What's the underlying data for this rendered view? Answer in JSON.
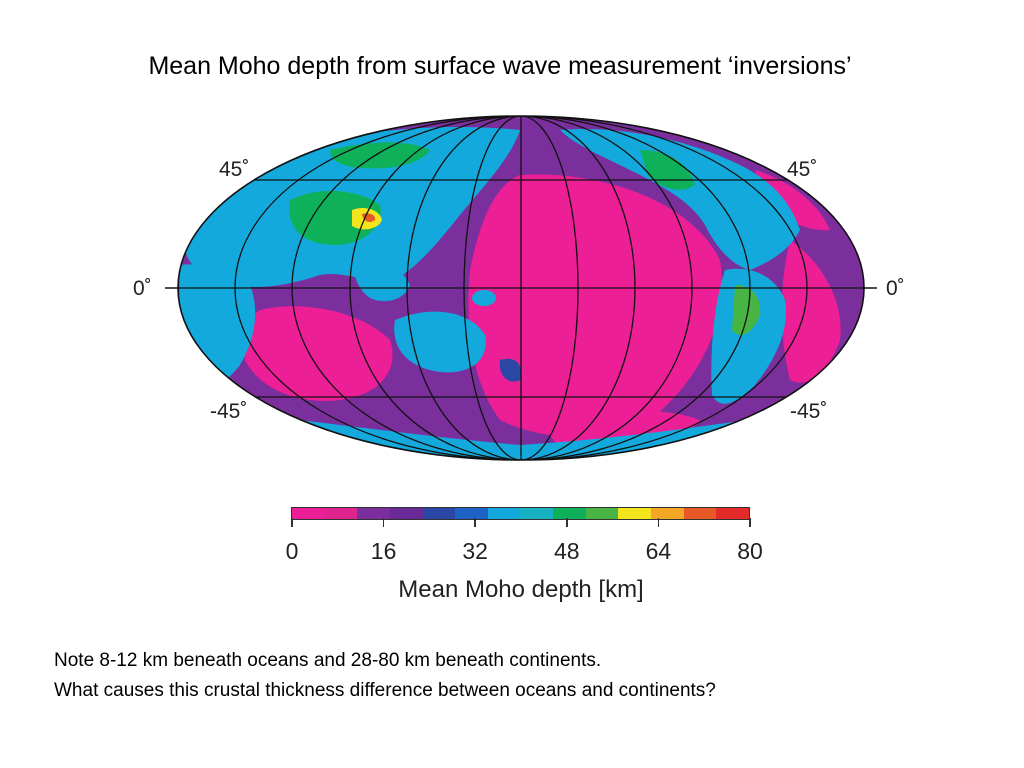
{
  "title": "Mean Moho depth from surface wave measurement ‘inversions’",
  "map": {
    "lat_labels": {
      "n45_left": "45˚",
      "n45_right": "45˚",
      "eq_left": "0˚",
      "eq_right": "0˚",
      "s45_left": "-45˚",
      "s45_right": "-45˚"
    }
  },
  "colorbar": {
    "colors": [
      "#ec1f96",
      "#e0248f",
      "#7a2f9c",
      "#6b2a98",
      "#2a47a6",
      "#1e62c4",
      "#14a9dc",
      "#19b1c4",
      "#0fb05a",
      "#47b444",
      "#f3e51c",
      "#f3a725",
      "#e75a25",
      "#e42b2a"
    ],
    "ticks": [
      "0",
      "16",
      "32",
      "48",
      "64",
      "80"
    ],
    "label": "Mean Moho depth [km]"
  },
  "notes": [
    "Note 8-12 km beneath oceans and 28-80 km beneath continents.",
    "What causes this crustal thickness difference between oceans and continents?"
  ]
}
